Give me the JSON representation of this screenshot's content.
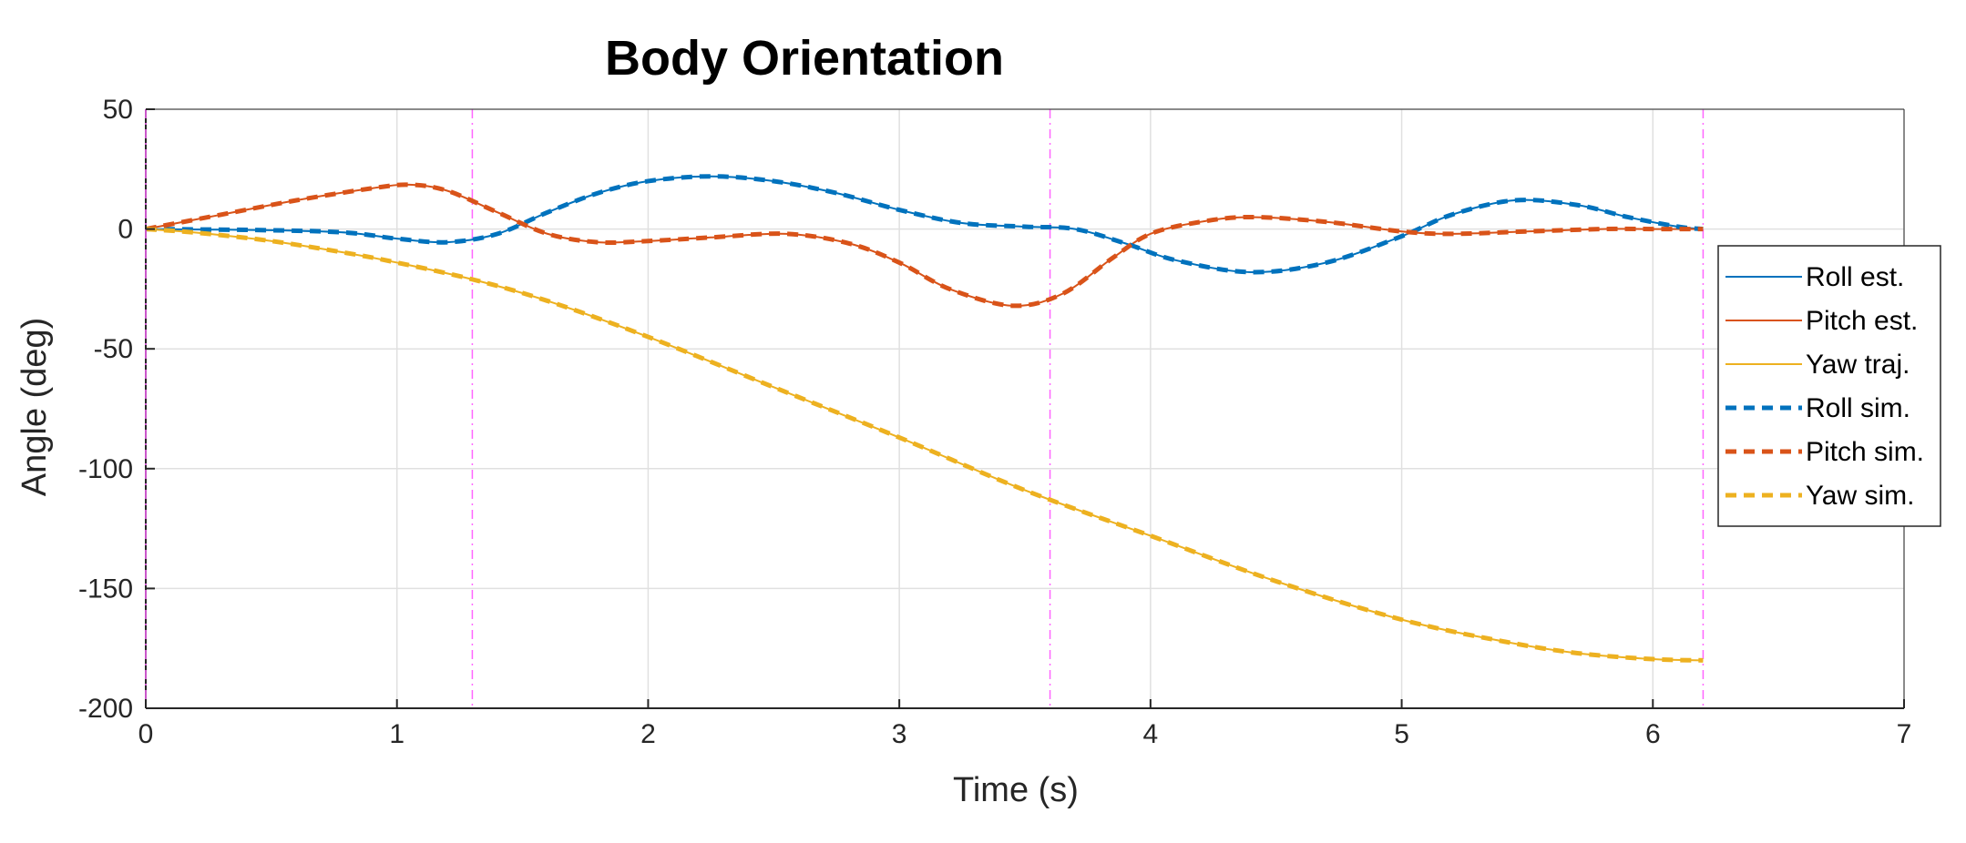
{
  "chart_data": {
    "type": "line",
    "title": "Body Orientation",
    "xlabel": "Time (s)",
    "ylabel": "Angle (deg)",
    "xlim": [
      0,
      7
    ],
    "ylim": [
      -200,
      50
    ],
    "xticks": [
      0,
      1,
      2,
      3,
      4,
      5,
      6,
      7
    ],
    "yticks": [
      -200,
      -150,
      -100,
      -50,
      0,
      50
    ],
    "grid": true,
    "legend_position": "right",
    "event_lines": {
      "x": [
        1.3,
        3.6,
        6.2
      ],
      "color": "#ff66ff",
      "style": "dash-dot"
    },
    "series": [
      {
        "name": "Roll est.",
        "color": "#0072bd",
        "style": "solid",
        "x": [
          0,
          0.5,
          0.8,
          1.0,
          1.2,
          1.4,
          1.6,
          1.8,
          2.0,
          2.25,
          2.5,
          2.75,
          3.0,
          3.25,
          3.5,
          3.7,
          3.9,
          4.1,
          4.4,
          4.7,
          5.0,
          5.2,
          5.45,
          5.7,
          5.9,
          6.1,
          6.2
        ],
        "y": [
          0,
          -0.5,
          -1.5,
          -4,
          -5.5,
          -2,
          7,
          15,
          20,
          22,
          20,
          15,
          8,
          2.5,
          1,
          0,
          -6,
          -13,
          -18,
          -14,
          -3,
          6,
          12,
          10,
          5,
          1,
          0
        ]
      },
      {
        "name": "Pitch est.",
        "color": "#d95319",
        "style": "solid",
        "x": [
          0,
          0.3,
          0.6,
          0.9,
          1.05,
          1.2,
          1.4,
          1.6,
          1.8,
          2.0,
          2.25,
          2.55,
          2.8,
          3.0,
          3.2,
          3.45,
          3.65,
          3.85,
          4.0,
          4.2,
          4.4,
          4.7,
          5.0,
          5.2,
          5.5,
          5.8,
          6.0,
          6.2
        ],
        "y": [
          0,
          6,
          12,
          17,
          18.5,
          16,
          7,
          -2,
          -5.5,
          -5,
          -3.5,
          -2,
          -6,
          -14,
          -25,
          -32,
          -27,
          -12,
          -2,
          3,
          5,
          3,
          -1,
          -2,
          -1,
          0,
          0,
          0
        ]
      },
      {
        "name": "Yaw traj.",
        "color": "#edb120",
        "style": "solid",
        "x": [
          0,
          0.2,
          0.5,
          0.8,
          1.0,
          1.3,
          1.6,
          2.0,
          2.5,
          3.0,
          3.5,
          4.0,
          4.5,
          5.0,
          5.4,
          5.7,
          6.0,
          6.2
        ],
        "y": [
          0,
          -1.5,
          -5,
          -10,
          -14,
          -21,
          -30,
          -45,
          -66,
          -87,
          -109,
          -128,
          -147,
          -163,
          -172,
          -177,
          -179.5,
          -180
        ]
      },
      {
        "name": "Roll sim.",
        "color": "#0072bd",
        "style": "dashed",
        "x": [
          0,
          0.5,
          0.8,
          1.0,
          1.2,
          1.4,
          1.6,
          1.8,
          2.0,
          2.25,
          2.5,
          2.75,
          3.0,
          3.25,
          3.5,
          3.7,
          3.9,
          4.1,
          4.4,
          4.7,
          5.0,
          5.2,
          5.45,
          5.7,
          5.9,
          6.1,
          6.2
        ],
        "y": [
          0,
          -0.5,
          -1.5,
          -4,
          -5.5,
          -2,
          7,
          15,
          20,
          22,
          20,
          15,
          8,
          2.5,
          1,
          0,
          -6,
          -13,
          -18,
          -14,
          -3,
          6,
          12,
          10,
          5,
          1,
          0
        ]
      },
      {
        "name": "Pitch sim.",
        "color": "#d95319",
        "style": "dashed",
        "x": [
          0,
          0.3,
          0.6,
          0.9,
          1.05,
          1.2,
          1.4,
          1.6,
          1.8,
          2.0,
          2.25,
          2.55,
          2.8,
          3.0,
          3.2,
          3.45,
          3.65,
          3.85,
          4.0,
          4.2,
          4.4,
          4.7,
          5.0,
          5.2,
          5.5,
          5.8,
          6.0,
          6.2
        ],
        "y": [
          0,
          6,
          12,
          17,
          18.5,
          16,
          7,
          -2,
          -5.5,
          -5,
          -3.5,
          -2,
          -6,
          -14,
          -25,
          -32,
          -27,
          -12,
          -2,
          3,
          5,
          3,
          -1,
          -2,
          -1,
          0,
          0,
          0
        ]
      },
      {
        "name": "Yaw sim.",
        "color": "#edb120",
        "style": "dashed",
        "x": [
          0,
          0.2,
          0.5,
          0.8,
          1.0,
          1.3,
          1.6,
          2.0,
          2.5,
          3.0,
          3.5,
          4.0,
          4.5,
          5.0,
          5.4,
          5.7,
          6.0,
          6.2
        ],
        "y": [
          0,
          -1.5,
          -5,
          -10,
          -14,
          -21,
          -30,
          -45,
          -66,
          -87,
          -109,
          -128,
          -147,
          -163,
          -172,
          -177,
          -179.5,
          -180
        ]
      }
    ]
  }
}
